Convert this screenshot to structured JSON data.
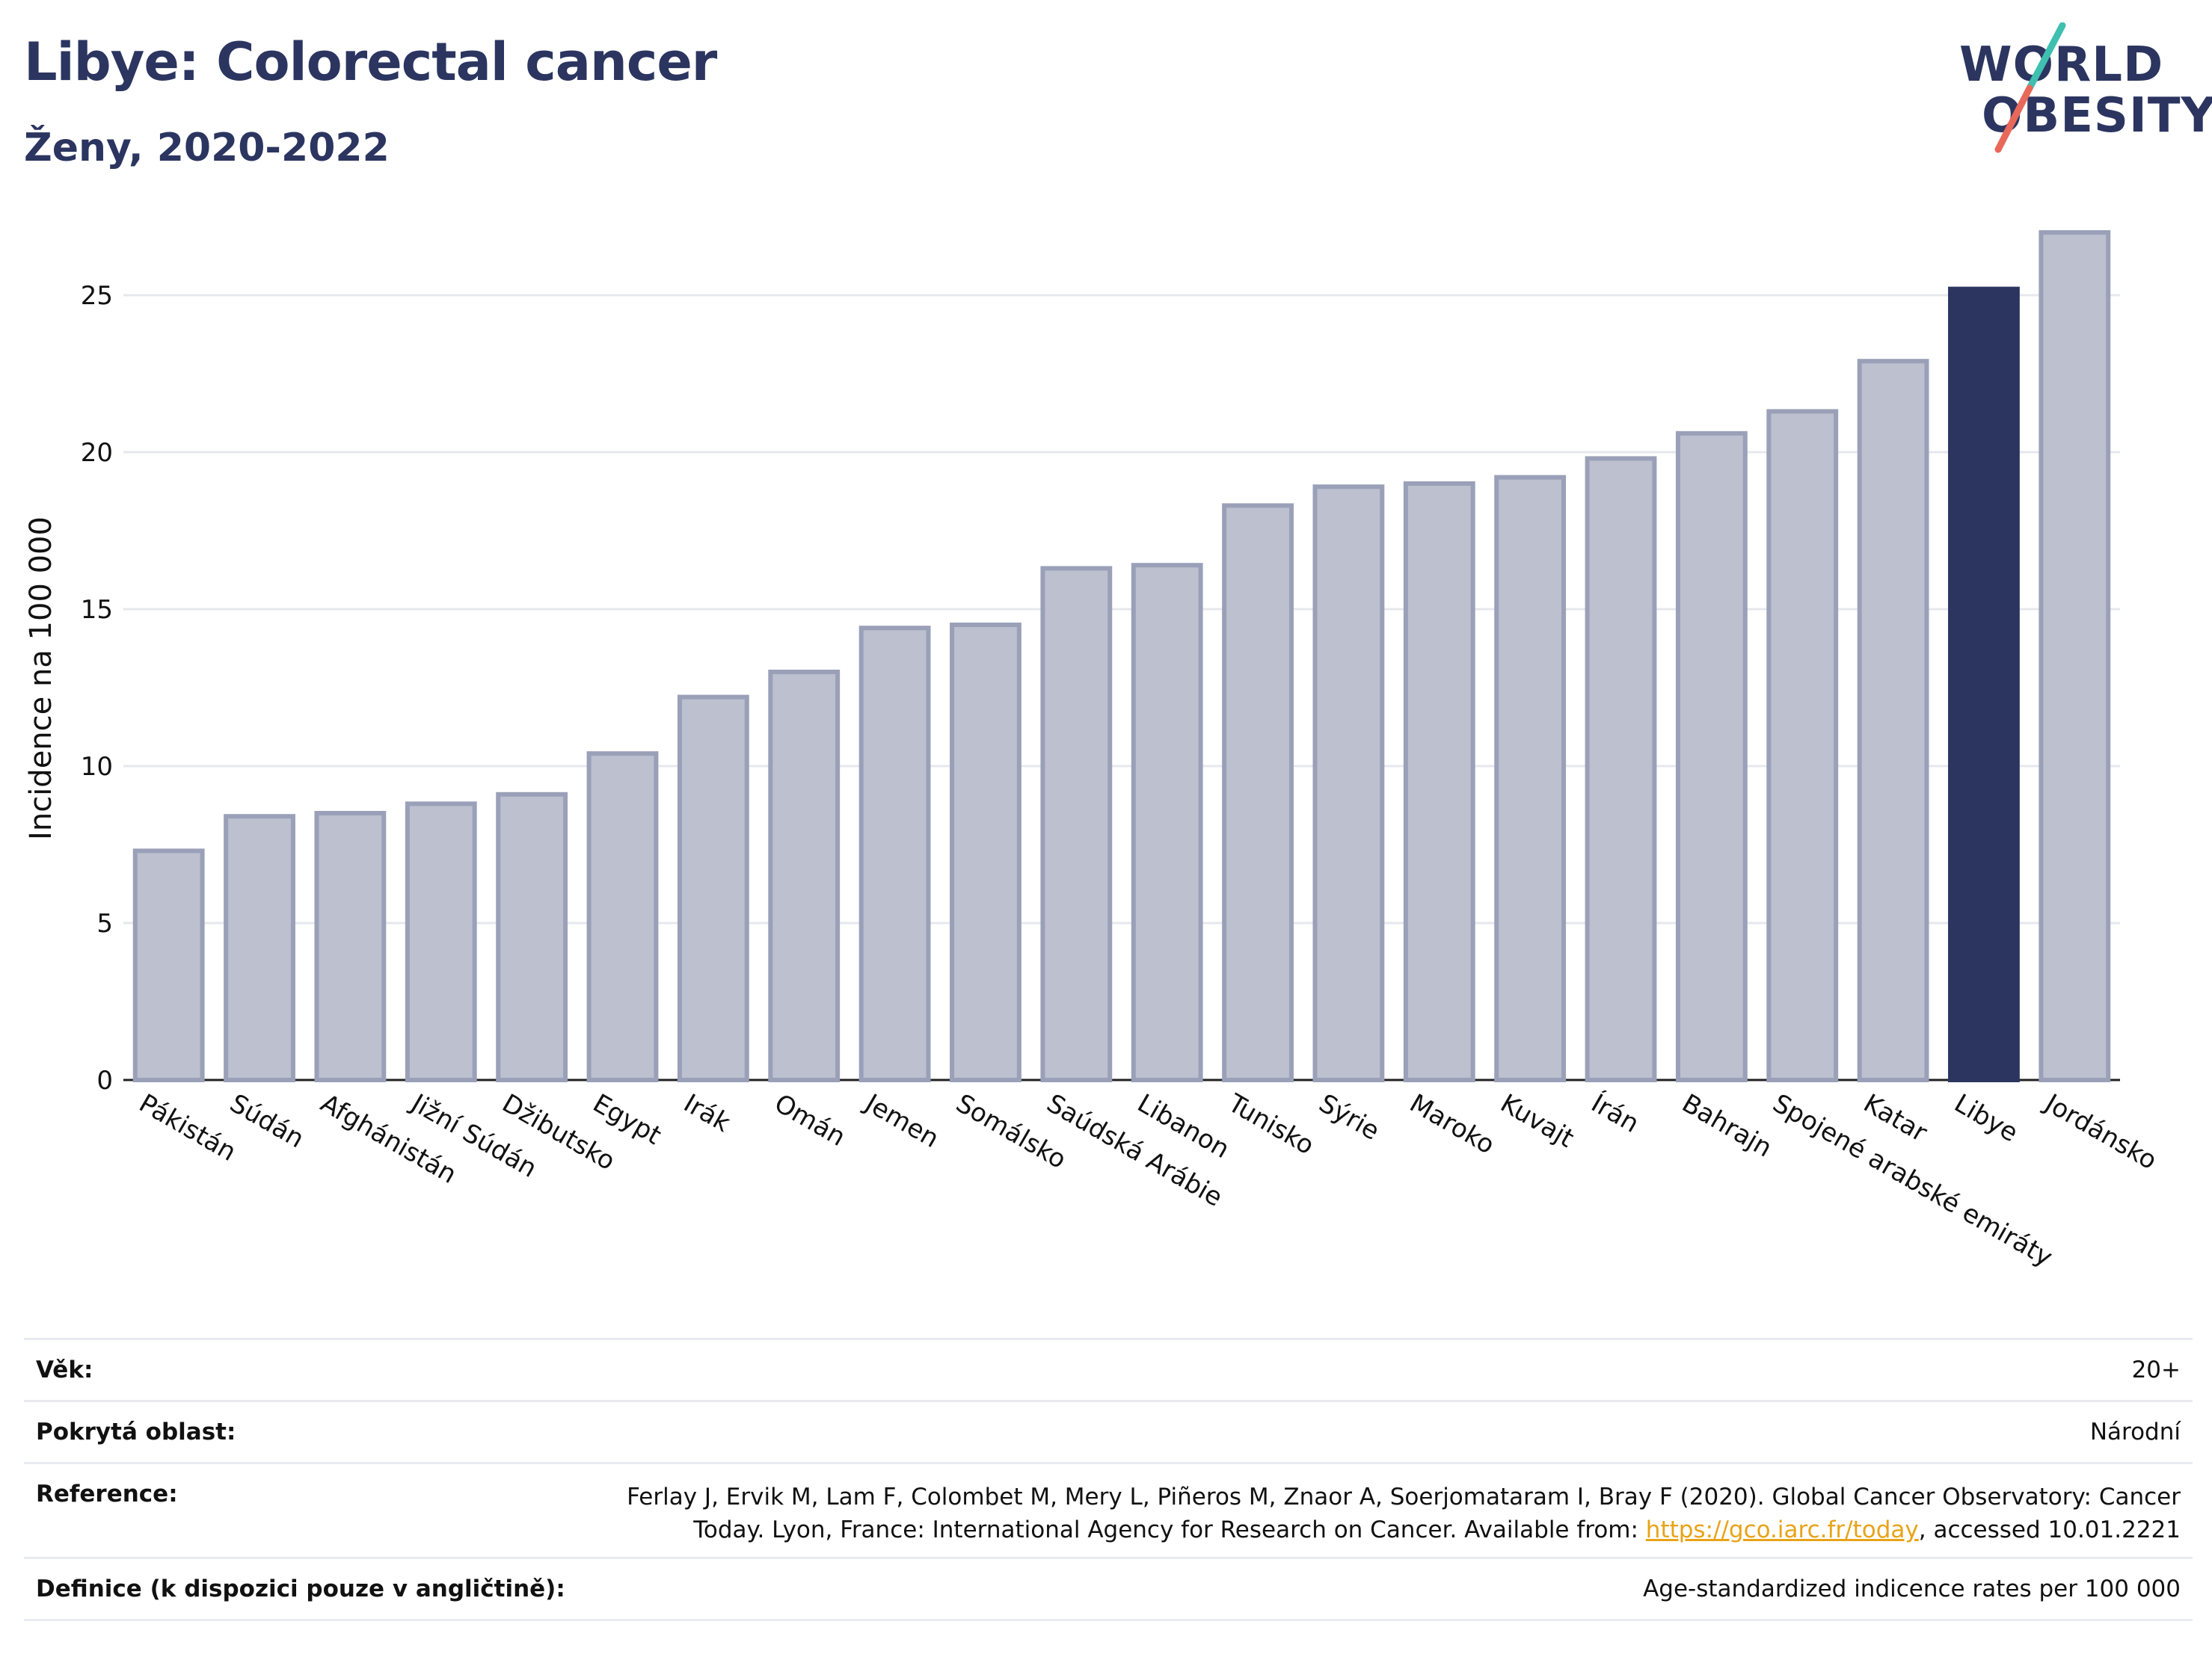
{
  "header": {
    "title": "Libye: Colorectal cancer",
    "subtitle": "Ženy, 2020-2022"
  },
  "logo": {
    "line1": "WORLD",
    "line2": "OBESITY",
    "accent_colors": [
      "#3fbfb0",
      "#e8685a"
    ]
  },
  "colors": {
    "bar": "#bcc0cf",
    "bar_border": "#9aa0b8",
    "highlight": "#2b3560",
    "grid": "#e6e8ee"
  },
  "chart_data": {
    "type": "bar",
    "ylabel": "Incidence na 100 000",
    "ylim": [
      0,
      27.5
    ],
    "yticks": [
      0,
      5,
      10,
      15,
      20,
      25
    ],
    "grid": true,
    "highlight": "Libye",
    "categories": [
      "Pákistán",
      "Súdán",
      "Afghánistán",
      "Jižní Súdán",
      "Džibutsko",
      "Egypt",
      "Irák",
      "Omán",
      "Jemen",
      "Somálsko",
      "Saúdská Arábie",
      "Libanon",
      "Tunisko",
      "Sýrie",
      "Maroko",
      "Kuvajt",
      "Írán",
      "Bahrajn",
      "Spojené arabské emiráty",
      "Katar",
      "Libye",
      "Jordánsko"
    ],
    "values": [
      7.3,
      8.4,
      8.5,
      8.8,
      9.1,
      10.4,
      12.2,
      13.0,
      14.4,
      14.5,
      16.3,
      16.4,
      18.3,
      18.9,
      19.0,
      19.2,
      19.8,
      20.6,
      21.3,
      22.9,
      25.2,
      27.0
    ]
  },
  "info": {
    "age_label": "Věk:",
    "age_value": "20+",
    "coverage_label": "Pokrytá oblast:",
    "coverage_value": "Národní",
    "reference_label": "Reference:",
    "reference_text": "Ferlay J, Ervik M, Lam F, Colombet M, Mery L, Piñeros M, Znaor A, Soerjomataram I, Bray F (2020). Global Cancer Observatory: Cancer Today. Lyon, France: International Agency for Research on Cancer. Available from: ",
    "reference_link": "https://gco.iarc.fr/today",
    "reference_suffix": ", accessed 10.01.2221",
    "definition_label": "Definice (k dispozici pouze v angličtině):",
    "definition_value": "Age-standardized indicence rates per 100 000"
  }
}
